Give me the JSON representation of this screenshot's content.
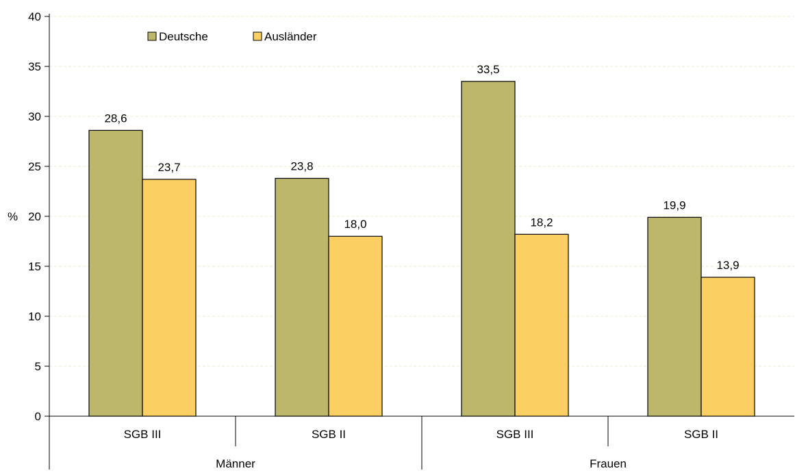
{
  "chart_data": {
    "type": "bar",
    "ylabel": "%",
    "ylim": [
      0,
      40
    ],
    "ytick_step": 5,
    "grid": true,
    "legend_position": "top-left",
    "groups": [
      {
        "label": "Männer",
        "categories": [
          "SGB III",
          "SGB II"
        ]
      },
      {
        "label": "Frauen",
        "categories": [
          "SGB III",
          "SGB II"
        ]
      }
    ],
    "categories": [
      "SGB III",
      "SGB II",
      "SGB III",
      "SGB II"
    ],
    "series": [
      {
        "name": "Deutsche",
        "color": "#BDB76B",
        "values": [
          28.6,
          23.8,
          33.5,
          19.9
        ],
        "labels": [
          "28,6",
          "23,8",
          "33,5",
          "19,9"
        ]
      },
      {
        "name": "Ausländer",
        "color": "#FCCF63",
        "values": [
          23.7,
          18.0,
          18.2,
          13.9
        ],
        "labels": [
          "23,7",
          "18,0",
          "18,2",
          "13,9"
        ]
      }
    ]
  }
}
